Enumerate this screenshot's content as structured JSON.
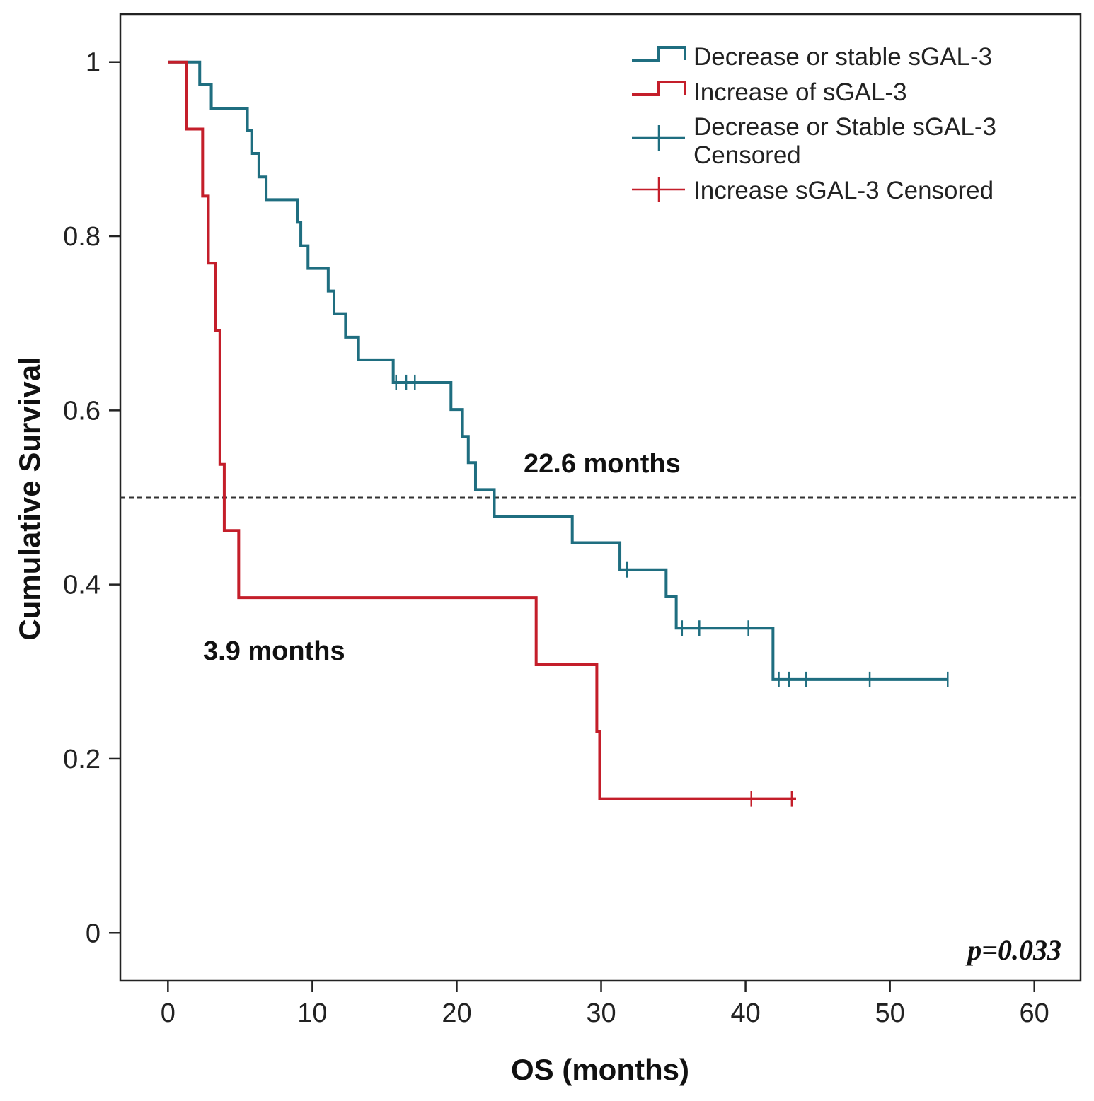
{
  "chart_data": {
    "type": "line",
    "subtype": "kaplan-meier",
    "xlabel": "OS (months)",
    "ylabel": "Cumulative Survival",
    "xlim": [
      -3.3,
      63.2
    ],
    "ylim": [
      -0.055,
      1.055
    ],
    "x_ticks": [
      0,
      10,
      20,
      30,
      40,
      50,
      60
    ],
    "y_ticks": [
      0,
      0.2,
      0.4,
      0.6,
      0.8,
      1
    ],
    "x_tick_labels": [
      "0",
      "10",
      "20",
      "30",
      "40",
      "50",
      "60"
    ],
    "y_tick_labels": [
      "0",
      "0.2",
      "0.4",
      "0.6",
      "0.8",
      "1"
    ],
    "reference_line_y": 0.5,
    "series": [
      {
        "name": "Decrease or stable sGAL-3",
        "color": "#1f6e80",
        "steps": [
          [
            0,
            1.0
          ],
          [
            2.2,
            0.974
          ],
          [
            3.0,
            0.947
          ],
          [
            5.5,
            0.921
          ],
          [
            5.8,
            0.895
          ],
          [
            6.3,
            0.868
          ],
          [
            6.8,
            0.842
          ],
          [
            9.0,
            0.816
          ],
          [
            9.2,
            0.789
          ],
          [
            9.7,
            0.763
          ],
          [
            11.1,
            0.737
          ],
          [
            11.5,
            0.711
          ],
          [
            12.3,
            0.684
          ],
          [
            13.2,
            0.658
          ],
          [
            15.6,
            0.632
          ],
          [
            19.6,
            0.601
          ],
          [
            20.4,
            0.57
          ],
          [
            20.8,
            0.54
          ],
          [
            21.3,
            0.509
          ],
          [
            22.6,
            0.478
          ],
          [
            28.0,
            0.448
          ],
          [
            31.3,
            0.417
          ],
          [
            34.5,
            0.386
          ],
          [
            35.2,
            0.35
          ],
          [
            41.9,
            0.291
          ]
        ],
        "end_x": 54.0,
        "censored": [
          15.8,
          16.5,
          17.1,
          31.8,
          35.6,
          36.8,
          40.2,
          42.3,
          43.0,
          44.2,
          48.6,
          54.0
        ]
      },
      {
        "name": "Increase of sGAL-3",
        "color": "#c41e2a",
        "steps": [
          [
            0,
            1.0
          ],
          [
            1.3,
            0.923
          ],
          [
            2.4,
            0.846
          ],
          [
            2.8,
            0.769
          ],
          [
            3.3,
            0.692
          ],
          [
            3.6,
            0.615
          ],
          [
            3.6,
            0.538
          ],
          [
            3.9,
            0.462
          ],
          [
            4.9,
            0.385
          ],
          [
            25.5,
            0.308
          ],
          [
            29.7,
            0.231
          ],
          [
            29.9,
            0.154
          ]
        ],
        "end_x": 43.5,
        "censored": [
          40.4,
          43.2
        ]
      }
    ],
    "legend": {
      "placement": "top-right",
      "entries": [
        {
          "label": "Decrease or stable sGAL-3",
          "color": "#1f6e80",
          "symbol": "step"
        },
        {
          "label": "Increase of sGAL-3",
          "color": "#c41e2a",
          "symbol": "step"
        },
        {
          "label_lines": [
            "Decrease or Stable sGAL-3",
            "Censored"
          ],
          "color": "#1f6e80",
          "symbol": "cross"
        },
        {
          "label": "Increase sGAL-3 Censored",
          "color": "#c41e2a",
          "symbol": "cross"
        }
      ]
    },
    "annotations": [
      {
        "text": "22.6 months",
        "x": 31.0,
        "y": 0.54
      },
      {
        "text": "3.9 months",
        "x": 8.0,
        "y": 0.325
      },
      {
        "text": "p=0.033",
        "anchor": "bottom-right"
      }
    ]
  }
}
